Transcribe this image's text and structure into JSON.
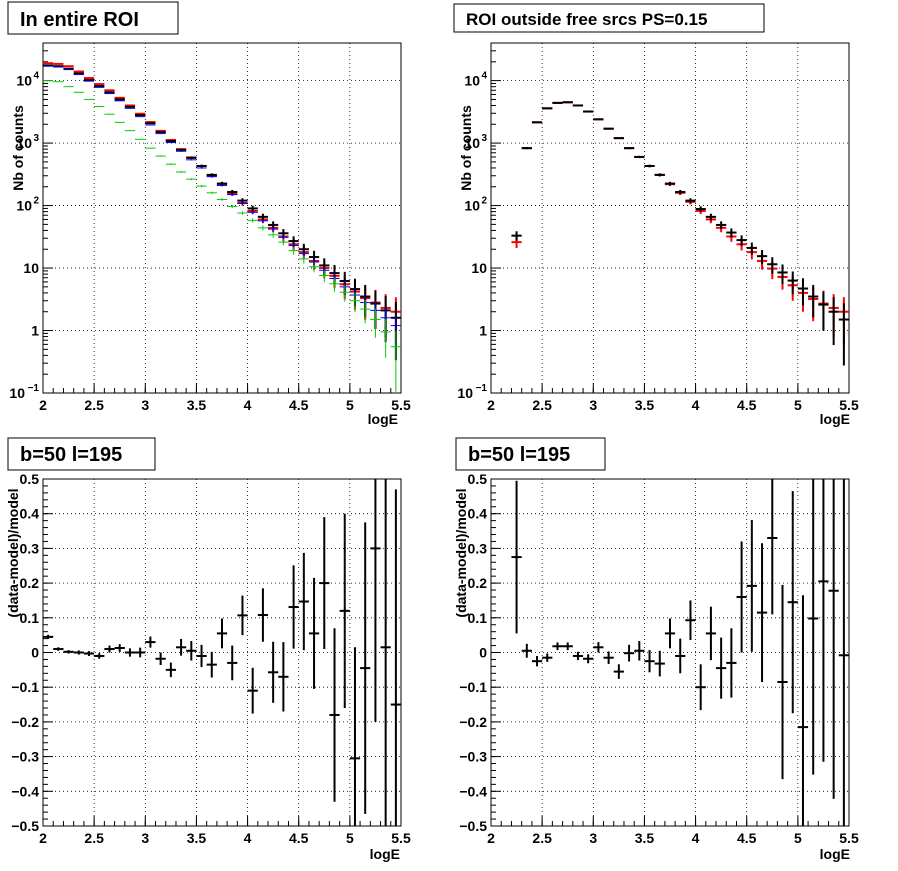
{
  "panels": [
    {
      "title": "In entire ROI",
      "xlabel": "logE",
      "ylabel": "Nb of counts",
      "xlim": [
        2,
        5.5
      ],
      "ylim": [
        0.1,
        40000
      ],
      "yscale": "log",
      "xticks": [
        "2",
        "2.5",
        "3",
        "3.5",
        "4",
        "4.5",
        "5",
        "5.5"
      ],
      "yticks": [
        {
          "v": 0.1,
          "label": "10",
          "sup": "−1"
        },
        {
          "v": 1,
          "label": "1",
          "sup": ""
        },
        {
          "v": 10,
          "label": "10",
          "sup": ""
        },
        {
          "v": 100,
          "label": "10",
          "sup": "2"
        },
        {
          "v": 1000,
          "label": "10",
          "sup": "3"
        },
        {
          "v": 10000,
          "label": "10",
          "sup": "4"
        }
      ]
    },
    {
      "title": "ROI outside free srcs PS=0.15",
      "xlabel": "logE",
      "ylabel": "Nb of counts",
      "xlim": [
        2,
        5.5
      ],
      "ylim": [
        0.1,
        40000
      ],
      "yscale": "log",
      "xticks": [
        "2",
        "2.5",
        "3",
        "3.5",
        "4",
        "4.5",
        "5",
        "5.5"
      ],
      "yticks": [
        {
          "v": 0.1,
          "label": "10",
          "sup": "−1"
        },
        {
          "v": 1,
          "label": "1",
          "sup": ""
        },
        {
          "v": 10,
          "label": "10",
          "sup": ""
        },
        {
          "v": 100,
          "label": "10",
          "sup": "2"
        },
        {
          "v": 1000,
          "label": "10",
          "sup": "3"
        },
        {
          "v": 10000,
          "label": "10",
          "sup": "4"
        }
      ]
    },
    {
      "title": "b=50 l=195",
      "xlabel": "logE",
      "ylabel": "(data-model)/model",
      "xlim": [
        2,
        5.5
      ],
      "ylim": [
        -0.5,
        0.5
      ],
      "yscale": "linear",
      "xticks": [
        "2",
        "2.5",
        "3",
        "3.5",
        "4",
        "4.5",
        "5",
        "5.5"
      ],
      "yticks": [
        {
          "v": -0.5,
          "label": "−0.5"
        },
        {
          "v": -0.4,
          "label": "−0.4"
        },
        {
          "v": -0.3,
          "label": "−0.3"
        },
        {
          "v": -0.2,
          "label": "−0.2"
        },
        {
          "v": -0.1,
          "label": "−0.1"
        },
        {
          "v": 0,
          "label": "0"
        },
        {
          "v": 0.1,
          "label": "0.1"
        },
        {
          "v": 0.2,
          "label": "0.2"
        },
        {
          "v": 0.3,
          "label": "0.3"
        },
        {
          "v": 0.4,
          "label": "0.4"
        },
        {
          "v": 0.5,
          "label": "0.5"
        }
      ]
    },
    {
      "title": "b=50 l=195",
      "xlabel": "logE",
      "ylabel": "(data-model)/model",
      "xlim": [
        2,
        5.5
      ],
      "ylim": [
        -0.5,
        0.5
      ],
      "yscale": "linear",
      "xticks": [
        "2",
        "2.5",
        "3",
        "3.5",
        "4",
        "4.5",
        "5",
        "5.5"
      ],
      "yticks": [
        {
          "v": -0.5,
          "label": "−0.5"
        },
        {
          "v": -0.4,
          "label": "−0.4"
        },
        {
          "v": -0.3,
          "label": "−0.3"
        },
        {
          "v": -0.2,
          "label": "−0.2"
        },
        {
          "v": -0.1,
          "label": "−0.1"
        },
        {
          "v": 0,
          "label": "0"
        },
        {
          "v": 0.1,
          "label": "0.1"
        },
        {
          "v": 0.2,
          "label": "0.2"
        },
        {
          "v": 0.3,
          "label": "0.3"
        },
        {
          "v": 0.4,
          "label": "0.4"
        },
        {
          "v": 0.5,
          "label": "0.5"
        }
      ]
    }
  ],
  "chart_data": [
    {
      "type": "scatter",
      "title": "In entire ROI",
      "xlabel": "logE",
      "ylabel": "Nb of counts",
      "xlim": [
        2,
        5.5
      ],
      "ylim": [
        0.1,
        40000
      ],
      "yscale": "log",
      "grid": true,
      "bin_half_width": 0.05,
      "x": [
        2.05,
        2.15,
        2.25,
        2.35,
        2.45,
        2.55,
        2.65,
        2.75,
        2.85,
        2.95,
        3.05,
        3.15,
        3.25,
        3.35,
        3.45,
        3.55,
        3.65,
        3.75,
        3.85,
        3.95,
        4.05,
        4.15,
        4.25,
        4.35,
        4.45,
        4.55,
        4.65,
        4.75,
        4.85,
        4.95,
        5.05,
        5.15,
        5.25,
        5.35,
        5.45
      ],
      "series": [
        {
          "color": "#ff0000",
          "errorbars": true,
          "values": [
            19000,
            18500,
            17000,
            14000,
            11000,
            8800,
            7000,
            5300,
            4000,
            2950,
            2170,
            1570,
            1120,
            800,
            590,
            430,
            300,
            220,
            155,
            110,
            82,
            60,
            44,
            32,
            24,
            18,
            13,
            10,
            7.5,
            5.5,
            4.2,
            3.3,
            2.8,
            2.3,
            2.0
          ]
        },
        {
          "color": "#000000",
          "errorbars": true,
          "values": [
            17500,
            17000,
            15500,
            13000,
            10200,
            8200,
            6500,
            5000,
            3800,
            2800,
            2080,
            1500,
            1080,
            780,
            580,
            430,
            310,
            225,
            165,
            120,
            90,
            66,
            49,
            36,
            27,
            20,
            15,
            11,
            8.3,
            6.2,
            4.6,
            3.5,
            2.7,
            2.1,
            1.6
          ]
        },
        {
          "color": "#0000ff",
          "errorbars": false,
          "values": [
            17000,
            16500,
            15000,
            12500,
            9800,
            7800,
            6200,
            4750,
            3600,
            2650,
            1950,
            1420,
            1020,
            740,
            540,
            400,
            290,
            210,
            150,
            108,
            78,
            57,
            42,
            31,
            23,
            17,
            12.5,
            9.2,
            6.8,
            5.0,
            3.7,
            2.8,
            2.1,
            1.6,
            1.2
          ]
        },
        {
          "color": "#00cc00",
          "errorbars": false,
          "values": [
            10000,
            9600,
            8000,
            6500,
            5000,
            3850,
            2900,
            2150,
            1580,
            1150,
            830,
            620,
            460,
            345,
            265,
            205,
            160,
            125,
            97,
            76,
            58,
            44,
            34,
            26,
            19,
            14,
            10.5,
            7.6,
            5.6,
            4.1,
            3.0,
            2.2,
            1.5,
            0.95,
            0.55
          ]
        }
      ]
    },
    {
      "type": "scatter",
      "title": "ROI outside free srcs PS=0.15",
      "xlabel": "logE",
      "ylabel": "Nb of counts",
      "xlim": [
        2,
        5.5
      ],
      "ylim": [
        0.1,
        40000
      ],
      "yscale": "log",
      "grid": true,
      "bin_half_width": 0.05,
      "x": [
        2.25,
        2.35,
        2.45,
        2.55,
        2.65,
        2.75,
        2.85,
        2.95,
        3.05,
        3.15,
        3.25,
        3.35,
        3.45,
        3.55,
        3.65,
        3.75,
        3.85,
        3.95,
        4.05,
        4.15,
        4.25,
        4.35,
        4.45,
        4.55,
        4.65,
        4.75,
        4.85,
        4.95,
        5.05,
        5.15,
        5.25,
        5.35,
        5.45
      ],
      "series": [
        {
          "color": "#ff0000",
          "errorbars": true,
          "values": [
            26,
            830,
            2150,
            3600,
            4400,
            4500,
            4000,
            3200,
            2400,
            1700,
            1200,
            830,
            600,
            430,
            310,
            220,
            160,
            115,
            82,
            60,
            44,
            32,
            24,
            18,
            13,
            9.8,
            7.2,
            5.3,
            4.0,
            3.2,
            2.7,
            2.3,
            2.0
          ]
        },
        {
          "color": "#000000",
          "errorbars": true,
          "values": [
            33,
            830,
            2150,
            3600,
            4400,
            4500,
            4000,
            3200,
            2400,
            1700,
            1200,
            830,
            600,
            430,
            310,
            225,
            165,
            120,
            88,
            66,
            49,
            37,
            28,
            21,
            15.5,
            11.5,
            8.5,
            6.3,
            4.7,
            3.5,
            2.6,
            2.0,
            1.5
          ]
        }
      ]
    },
    {
      "type": "scatter",
      "title": "b=50 l=195",
      "xlabel": "logE",
      "ylabel": "(data-model)/model",
      "xlim": [
        2,
        5.5
      ],
      "ylim": [
        -0.5,
        0.5
      ],
      "grid": true,
      "bin_half_width": 0.05,
      "x": [
        2.05,
        2.15,
        2.25,
        2.35,
        2.45,
        2.55,
        2.65,
        2.75,
        2.85,
        2.95,
        3.05,
        3.15,
        3.25,
        3.35,
        3.45,
        3.55,
        3.65,
        3.75,
        3.85,
        3.95,
        4.05,
        4.15,
        4.25,
        4.35,
        4.45,
        4.55,
        4.65,
        4.75,
        4.85,
        4.95,
        5.05,
        5.15,
        5.25,
        5.35,
        5.45
      ],
      "series": [
        {
          "color": "#000000",
          "errorbars": true,
          "values": [
            0.045,
            0.01,
            0.002,
            0.0,
            -0.003,
            -0.01,
            0.01,
            0.013,
            0.0,
            0.0,
            0.03,
            -0.018,
            -0.05,
            0.015,
            0.005,
            -0.01,
            -0.035,
            0.055,
            -0.03,
            0.107,
            -0.11,
            0.108,
            -0.057,
            -0.07,
            0.131,
            0.147,
            0.055,
            0.2,
            -0.18,
            0.12,
            -0.305,
            -0.045,
            0.3,
            0.015,
            -0.15
          ],
          "errors": [
            0.006,
            0.005,
            0.005,
            0.006,
            0.007,
            0.008,
            0.01,
            0.011,
            0.012,
            0.014,
            0.016,
            0.018,
            0.021,
            0.024,
            0.028,
            0.032,
            0.037,
            0.043,
            0.05,
            0.057,
            0.066,
            0.077,
            0.088,
            0.1,
            0.12,
            0.14,
            0.16,
            0.19,
            0.25,
            0.28,
            0.32,
            0.42,
            0.5,
            0.6,
            0.62
          ]
        }
      ]
    },
    {
      "type": "scatter",
      "title": "b=50 l=195",
      "xlabel": "logE",
      "ylabel": "(data-model)/model",
      "xlim": [
        2,
        5.5
      ],
      "ylim": [
        -0.5,
        0.5
      ],
      "grid": true,
      "bin_half_width": 0.05,
      "x": [
        2.25,
        2.35,
        2.45,
        2.55,
        2.65,
        2.75,
        2.85,
        2.95,
        3.05,
        3.15,
        3.25,
        3.35,
        3.45,
        3.55,
        3.65,
        3.75,
        3.85,
        3.95,
        4.05,
        4.15,
        4.25,
        4.35,
        4.45,
        4.55,
        4.65,
        4.75,
        4.85,
        4.95,
        5.05,
        5.15,
        5.25,
        5.35,
        5.45
      ],
      "series": [
        {
          "color": "#000000",
          "errorbars": true,
          "values": [
            0.275,
            0.005,
            -0.025,
            -0.015,
            0.018,
            0.018,
            -0.01,
            -0.018,
            0.015,
            -0.015,
            -0.055,
            -0.002,
            0.005,
            -0.025,
            -0.032,
            0.055,
            -0.01,
            0.093,
            -0.1,
            0.055,
            -0.045,
            -0.03,
            0.16,
            0.192,
            0.115,
            0.33,
            -0.085,
            0.145,
            -0.215,
            0.098,
            0.205,
            0.178,
            -0.008
          ],
          "errors": [
            0.22,
            0.02,
            0.015,
            0.012,
            0.011,
            0.011,
            0.012,
            0.013,
            0.015,
            0.018,
            0.021,
            0.024,
            0.028,
            0.032,
            0.037,
            0.043,
            0.05,
            0.057,
            0.066,
            0.077,
            0.088,
            0.1,
            0.16,
            0.19,
            0.2,
            0.22,
            0.28,
            0.32,
            0.38,
            0.45,
            0.52,
            0.6,
            0.62
          ]
        }
      ]
    }
  ]
}
